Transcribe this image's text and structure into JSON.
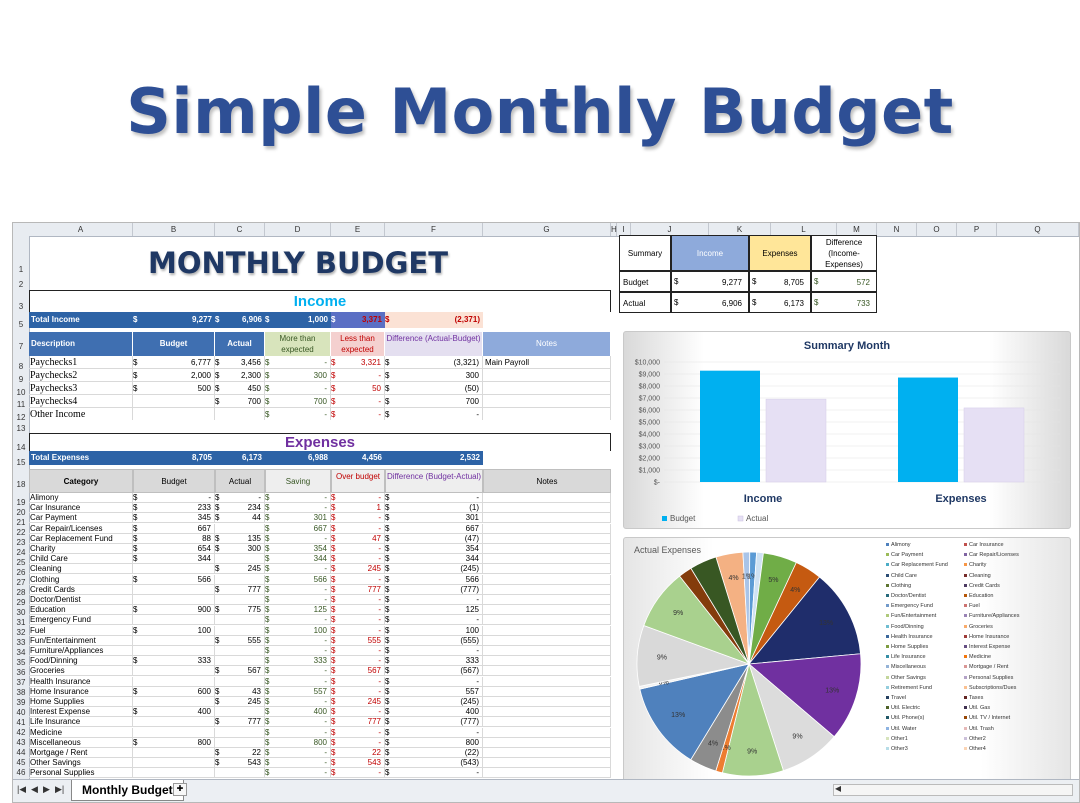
{
  "banner_title": "Simple Monthly Budget",
  "sheet": {
    "title": "MONTHLY BUDGET",
    "columns": [
      "A",
      "B",
      "C",
      "D",
      "E",
      "F",
      "G",
      "H",
      "I",
      "J",
      "K",
      "L",
      "M",
      "N",
      "O",
      "P",
      "Q"
    ],
    "row_numbers": [
      "1",
      "2",
      "3",
      "5",
      "7",
      "8",
      "9",
      "10",
      "11",
      "12",
      "13",
      "14",
      "15",
      "18",
      "19",
      "20",
      "21",
      "22",
      "23",
      "24",
      "25",
      "26",
      "27",
      "28",
      "29",
      "30",
      "31",
      "32",
      "33",
      "34",
      "35",
      "36",
      "37",
      "38",
      "39",
      "40",
      "41",
      "42",
      "43",
      "44",
      "45",
      "46"
    ],
    "income": {
      "section_label": "Income",
      "total_label": "Total Income",
      "total_budget": "9,277",
      "total_actual": "6,906",
      "total_more": "1,000",
      "total_less": "3,371",
      "total_diff": "(2,371)",
      "currency": "$",
      "headers": [
        "Description",
        "Budget",
        "Actual",
        "More than expected",
        "Less than expected",
        "Difference (Actual-Budget)",
        "Notes"
      ],
      "rows": [
        {
          "desc": "Paychecks1",
          "budget": "6,777",
          "actual": "3,456",
          "more": "-",
          "less": "3,321",
          "diff": "(3,321)",
          "notes": "Main Payroll"
        },
        {
          "desc": "Paychecks2",
          "budget": "2,000",
          "actual": "2,300",
          "more": "300",
          "less": "-",
          "diff": "300",
          "notes": ""
        },
        {
          "desc": "Paychecks3",
          "budget": "500",
          "actual": "450",
          "more": "-",
          "less": "50",
          "diff": "(50)",
          "notes": ""
        },
        {
          "desc": "Paychecks4",
          "budget": "",
          "actual": "700",
          "more": "700",
          "less": "-",
          "diff": "700",
          "notes": ""
        },
        {
          "desc": "Other Income",
          "budget": "",
          "actual": "",
          "more": "-",
          "less": "-",
          "diff": "-",
          "notes": ""
        }
      ]
    },
    "expenses": {
      "section_label": "Expenses",
      "total_label": "Total Expenses",
      "total_budget": "8,705",
      "total_actual": "6,173",
      "total_saving": "6,988",
      "total_over": "4,456",
      "total_diff": "2,532",
      "headers": [
        "Category",
        "Budget",
        "Actual",
        "Saving",
        "Over budget",
        "Difference (Budget-Actual)",
        "Notes"
      ],
      "rows": [
        {
          "cat": "Alimony",
          "budget": "-",
          "actual": "-",
          "saving": "-",
          "over": "-",
          "diff": "-"
        },
        {
          "cat": "Car Insurance",
          "budget": "233",
          "actual": "234",
          "saving": "-",
          "over": "1",
          "diff": "(1)"
        },
        {
          "cat": "Car Payment",
          "budget": "345",
          "actual": "44",
          "saving": "301",
          "over": "-",
          "diff": "301"
        },
        {
          "cat": "Car Repair/Licenses",
          "budget": "667",
          "actual": "",
          "saving": "667",
          "over": "-",
          "diff": "667"
        },
        {
          "cat": "Car Replacement Fund",
          "budget": "88",
          "actual": "135",
          "saving": "-",
          "over": "47",
          "diff": "(47)"
        },
        {
          "cat": "Charity",
          "budget": "654",
          "actual": "300",
          "saving": "354",
          "over": "-",
          "diff": "354"
        },
        {
          "cat": "Child Care",
          "budget": "344",
          "actual": "",
          "saving": "344",
          "over": "-",
          "diff": "344"
        },
        {
          "cat": "Cleaning",
          "budget": "",
          "actual": "245",
          "saving": "-",
          "over": "245",
          "diff": "(245)"
        },
        {
          "cat": "Clothing",
          "budget": "566",
          "actual": "",
          "saving": "566",
          "over": "-",
          "diff": "566"
        },
        {
          "cat": "Credit Cards",
          "budget": "",
          "actual": "777",
          "saving": "-",
          "over": "777",
          "diff": "(777)"
        },
        {
          "cat": "Doctor/Dentist",
          "budget": "",
          "actual": "",
          "saving": "-",
          "over": "-",
          "diff": "-"
        },
        {
          "cat": "Education",
          "budget": "900",
          "actual": "775",
          "saving": "125",
          "over": "-",
          "diff": "125"
        },
        {
          "cat": "Emergency Fund",
          "budget": "",
          "actual": "",
          "saving": "-",
          "over": "-",
          "diff": "-"
        },
        {
          "cat": "Fuel",
          "budget": "100",
          "actual": "",
          "saving": "100",
          "over": "-",
          "diff": "100"
        },
        {
          "cat": "Fun/Entertainment",
          "budget": "",
          "actual": "555",
          "saving": "-",
          "over": "555",
          "diff": "(555)"
        },
        {
          "cat": "Furniture/Appliances",
          "budget": "",
          "actual": "",
          "saving": "-",
          "over": "-",
          "diff": "-"
        },
        {
          "cat": "Food/Dinning",
          "budget": "333",
          "actual": "",
          "saving": "333",
          "over": "-",
          "diff": "333"
        },
        {
          "cat": "Groceries",
          "budget": "",
          "actual": "567",
          "saving": "-",
          "over": "567",
          "diff": "(567)"
        },
        {
          "cat": "Health Insurance",
          "budget": "",
          "actual": "",
          "saving": "-",
          "over": "-",
          "diff": "-"
        },
        {
          "cat": "Home Insurance",
          "budget": "600",
          "actual": "43",
          "saving": "557",
          "over": "-",
          "diff": "557"
        },
        {
          "cat": "Home Supplies",
          "budget": "",
          "actual": "245",
          "saving": "-",
          "over": "245",
          "diff": "(245)"
        },
        {
          "cat": "Interest Expense",
          "budget": "400",
          "actual": "",
          "saving": "400",
          "over": "-",
          "diff": "400"
        },
        {
          "cat": "Life Insurance",
          "budget": "",
          "actual": "777",
          "saving": "-",
          "over": "777",
          "diff": "(777)"
        },
        {
          "cat": "Medicine",
          "budget": "",
          "actual": "",
          "saving": "-",
          "over": "-",
          "diff": "-"
        },
        {
          "cat": "Miscellaneous",
          "budget": "800",
          "actual": "",
          "saving": "800",
          "over": "-",
          "diff": "800"
        },
        {
          "cat": "Mortgage / Rent",
          "budget": "",
          "actual": "22",
          "saving": "-",
          "over": "22",
          "diff": "(22)"
        },
        {
          "cat": "Other Savings",
          "budget": "",
          "actual": "543",
          "saving": "-",
          "over": "543",
          "diff": "(543)"
        },
        {
          "cat": "Personal Supplies",
          "budget": "",
          "actual": "",
          "saving": "-",
          "over": "-",
          "diff": "-"
        }
      ]
    },
    "summary": {
      "headers": [
        "Summary",
        "Income",
        "Expenses",
        "Difference (Income-Expenses)"
      ],
      "rows": [
        {
          "label": "Budget",
          "income": "9,277",
          "expenses": "8,705",
          "diff": "572"
        },
        {
          "label": "Actual",
          "income": "6,906",
          "expenses": "6,173",
          "diff": "733"
        }
      ]
    },
    "tab_label": "Monthly Budget"
  },
  "chart_data": [
    {
      "type": "bar",
      "title": "Summary Month",
      "categories": [
        "Income",
        "Expenses"
      ],
      "series": [
        {
          "name": "Budget",
          "values": [
            9277,
            8705
          ],
          "color": "#00b0f0"
        },
        {
          "name": "Actual",
          "values": [
            6906,
            6173
          ],
          "color": "#e6e0f4"
        }
      ],
      "yticks": [
        "$-",
        "$1,000",
        "$2,000",
        "$3,000",
        "$4,000",
        "$5,000",
        "$6,000",
        "$7,000",
        "$8,000",
        "$9,000",
        "$10,000"
      ],
      "ylim": [
        0,
        10000
      ],
      "legend": "bottom-left"
    },
    {
      "type": "pie",
      "title": "Actual Expenses",
      "slices": [
        {
          "label": "4%",
          "value": 4,
          "color": "#f4b183"
        },
        {
          "label": "1%",
          "value": 1,
          "color": "#a9c4e8"
        },
        {
          "label": "1%",
          "value": 1,
          "color": "#5b9bd5"
        },
        {
          "label": "",
          "value": 1,
          "color": "#cfe2f3"
        },
        {
          "label": "5%",
          "value": 5,
          "color": "#70ad47"
        },
        {
          "label": "4%",
          "value": 4,
          "color": "#c55a11"
        },
        {
          "label": "13%",
          "value": 13,
          "color": "#1f2d6b"
        },
        {
          "label": "13%",
          "value": 13,
          "color": "#7030a0"
        },
        {
          "label": "9%",
          "value": 9,
          "color": "#dcdcdc"
        },
        {
          "label": "9%",
          "value": 9,
          "color": "#a9d18e"
        },
        {
          "label": "1%",
          "value": 1,
          "color": "#ed7d31"
        },
        {
          "label": "4%",
          "value": 4,
          "color": "#8c8c8c"
        },
        {
          "label": "13%",
          "value": 13,
          "color": "#4f81bd"
        },
        {
          "label": "0%",
          "value": 0.4,
          "color": "#f2f2f2"
        },
        {
          "label": "9%",
          "value": 9,
          "color": "#d9d9d9"
        },
        {
          "label": "9%",
          "value": 9,
          "color": "#a9d18e"
        },
        {
          "label": "",
          "value": 2,
          "color": "#843c0c"
        },
        {
          "label": "",
          "value": 4,
          "color": "#385723"
        }
      ],
      "legend": [
        "Alimony",
        "Car Insurance",
        "Car Payment",
        "Car Repair/Licenses",
        "Car Replacement Fund",
        "Charity",
        "Child Care",
        "Cleaning",
        "Clothing",
        "Credit Cards",
        "Doctor/Dentist",
        "Education",
        "Emergency Fund",
        "Fuel",
        "Fun/Entertainment",
        "Furniture/Appliances",
        "Food/Dinning",
        "Groceries",
        "Health Insurance",
        "Home Insurance",
        "Home Supplies",
        "Interest Expense",
        "Life Insurance",
        "Medicine",
        "Miscellaneous",
        "Mortgage / Rent",
        "Other Savings",
        "Personal Supplies",
        "Retirement Fund",
        "Subscriptions/Dues",
        "Travel",
        "Taxes",
        "Util. Electric",
        "Util. Gas",
        "Util. Phone(s)",
        "Util. TV / Internet",
        "Util. Water",
        "Util. Trash",
        "Other1",
        "Other2",
        "Other3",
        "Other4"
      ],
      "legend_colors": [
        "#4f81bd",
        "#c0504d",
        "#9bbb59",
        "#8064a2",
        "#4bacc6",
        "#f79646",
        "#2c4d75",
        "#772c2a",
        "#5f7530",
        "#4d3b62",
        "#276a7c",
        "#b65708",
        "#729aca",
        "#cd7371",
        "#afc97a",
        "#9983b5",
        "#6fbdd1",
        "#f9ab6b",
        "#3a679c",
        "#9e3b38",
        "#7e9c40",
        "#664f83",
        "#358ea5",
        "#f2760c",
        "#95b3d7",
        "#d99694",
        "#c3d69b",
        "#b3a2c7",
        "#93cddd",
        "#fac090",
        "#254061",
        "#632523",
        "#4f6228",
        "#3f3151",
        "#215968",
        "#974806",
        "#8db3e2",
        "#e6b9b8",
        "#d7e4bd",
        "#ccc1da",
        "#b7dde8",
        "#fbd5b5"
      ]
    }
  ]
}
